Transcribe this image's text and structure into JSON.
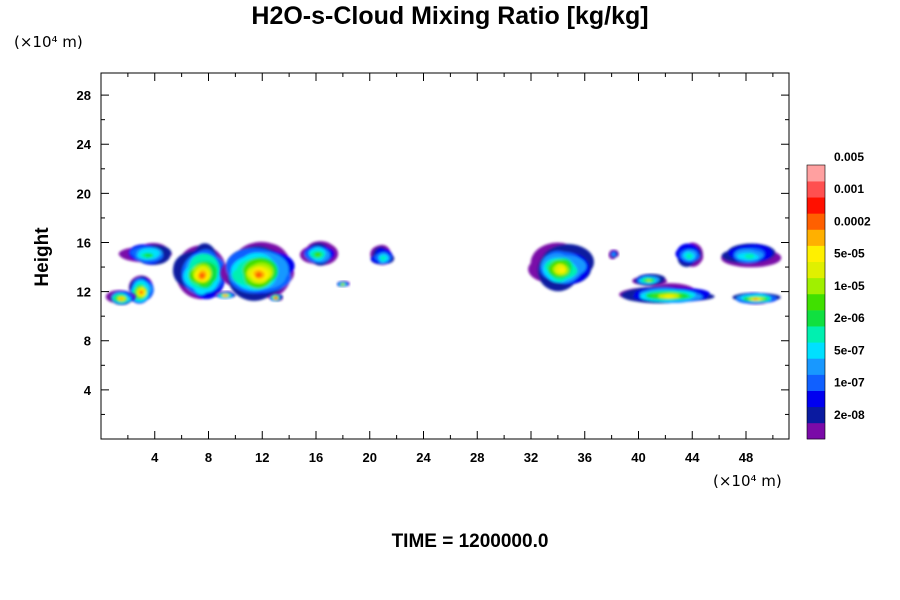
{
  "figure": {
    "title": "H2O-s-Cloud Mixing Ratio [kg/kg]",
    "y_unit": "(×10⁴ m)",
    "x_unit": "(×10⁴ m)",
    "ylabel": "Height",
    "time_label": "TIME = 1200000.0"
  },
  "chart_data": {
    "type": "heatmap",
    "title": "H2O-s-Cloud Mixing Ratio [kg/kg]",
    "xlabel": "",
    "ylabel": "Height",
    "x_unit": "×10⁴ m",
    "y_unit": "×10⁴ m",
    "xlim": [
      0,
      51.2
    ],
    "ylim": [
      0,
      29.8
    ],
    "x_ticks": [
      4,
      8,
      12,
      16,
      20,
      24,
      28,
      32,
      36,
      40,
      44,
      48
    ],
    "y_ticks": [
      4,
      8,
      12,
      16,
      20,
      24,
      28
    ],
    "colorbar": {
      "levels": [
        "2e-08",
        "1e-07",
        "5e-07",
        "2e-06",
        "1e-05",
        "5e-05",
        "0.0002",
        "0.001",
        "0.005"
      ],
      "colors": [
        "#7a0aa8",
        "#0a1aa0",
        "#0000f0",
        "#1060ff",
        "#1898ff",
        "#00e0ff",
        "#00f0b0",
        "#10e040",
        "#40e000",
        "#a0f000",
        "#e0f000",
        "#fff000",
        "#ffb000",
        "#ff6000",
        "#ff1000",
        "#ff5050",
        "#ffa0a0"
      ]
    },
    "cloud_regions": [
      {
        "x": [
          1.5,
          5.5
        ],
        "y": [
          14.2,
          16.2
        ],
        "max_level": 7
      },
      {
        "x": [
          2.0,
          4.0
        ],
        "y": [
          11.0,
          13.4
        ],
        "max_level": 13
      },
      {
        "x": [
          5.5,
          9.5
        ],
        "y": [
          11.5,
          16.2
        ],
        "max_level": 13
      },
      {
        "x": [
          9.0,
          14.5
        ],
        "y": [
          11.5,
          16.3
        ],
        "max_level": 13
      },
      {
        "x": [
          14.8,
          17.5
        ],
        "y": [
          14.2,
          16.2
        ],
        "max_level": 8
      },
      {
        "x": [
          17.5,
          18.5
        ],
        "y": [
          12.4,
          12.9
        ],
        "max_level": 9
      },
      {
        "x": [
          20.0,
          22.0
        ],
        "y": [
          14.0,
          15.8
        ],
        "max_level": 6
      },
      {
        "x": [
          32.0,
          36.5
        ],
        "y": [
          12.3,
          16.2
        ],
        "max_level": 11
      },
      {
        "x": [
          37.8,
          38.5
        ],
        "y": [
          14.7,
          15.5
        ],
        "max_level": 4
      },
      {
        "x": [
          39.5,
          42.0
        ],
        "y": [
          12.5,
          13.5
        ],
        "max_level": 9
      },
      {
        "x": [
          42.5,
          45.0
        ],
        "y": [
          14.0,
          16.2
        ],
        "max_level": 6
      },
      {
        "x": [
          46.0,
          50.5
        ],
        "y": [
          14.0,
          16.2
        ],
        "max_level": 6
      },
      {
        "x": [
          0.5,
          2.5
        ],
        "y": [
          10.9,
          12.2
        ],
        "max_level": 12
      },
      {
        "x": [
          8.5,
          10.0
        ],
        "y": [
          11.4,
          12.1
        ],
        "max_level": 12
      },
      {
        "x": [
          12.5,
          13.5
        ],
        "y": [
          11.2,
          11.9
        ],
        "max_level": 13
      },
      {
        "x": [
          39.0,
          45.5
        ],
        "y": [
          11.0,
          12.6
        ],
        "max_level": 11
      },
      {
        "x": [
          47.0,
          50.5
        ],
        "y": [
          11.0,
          12.0
        ],
        "max_level": 12
      }
    ]
  }
}
